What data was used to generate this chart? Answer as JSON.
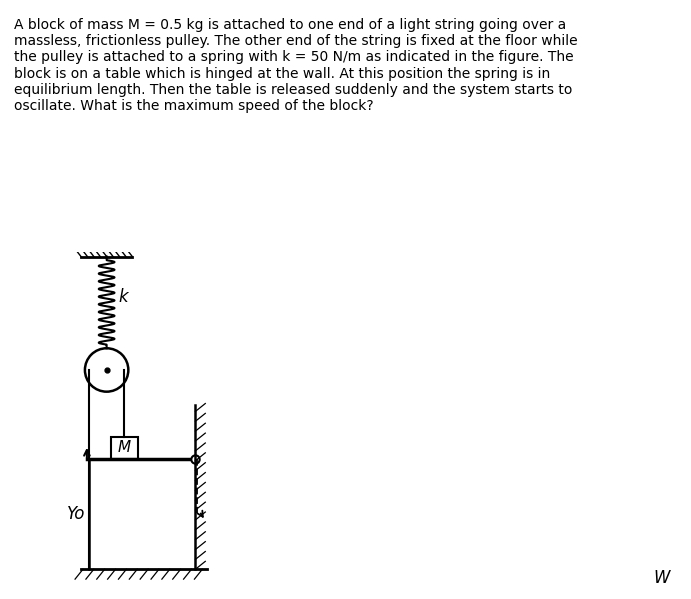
{
  "title_text": "A block of mass M = 0.5 kg is attached to one end of a light string going over a\nmassless, frictionless pulley. The other end of the string is fixed at the floor while\nthe pulley is attached to a spring with k = 50 N/m as indicated in the figure. The\nblock is on a table which is hinged at the wall. At this position the spring is in\nequilibrium length. Then the table is released suddenly and the system starts to\noscillate. What is the maximum speed of the block?",
  "background_color": "#ffffff",
  "text_color": "#000000",
  "line_color": "#000000",
  "fig_width": 6.91,
  "fig_height": 5.99,
  "label_k": "k",
  "label_M": "M",
  "label_yo": "Yo",
  "label_W": "W",
  "title_fontsize": 10.0
}
